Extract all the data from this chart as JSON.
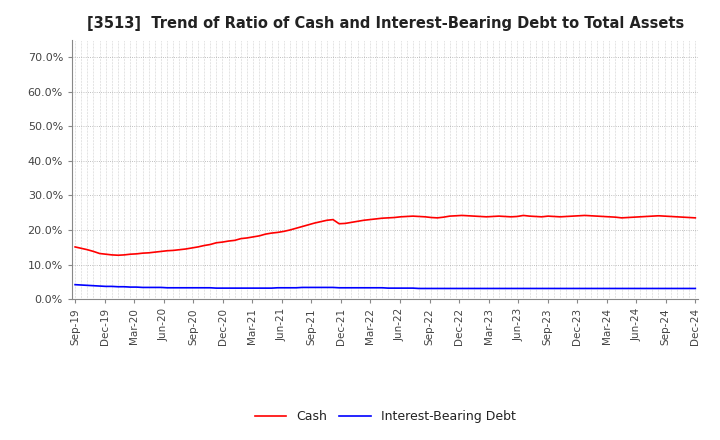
{
  "title": "[3513]  Trend of Ratio of Cash and Interest-Bearing Debt to Total Assets",
  "cash_data": [
    0.151,
    0.147,
    0.143,
    0.138,
    0.132,
    0.13,
    0.128,
    0.127,
    0.128,
    0.13,
    0.131,
    0.133,
    0.134,
    0.136,
    0.138,
    0.14,
    0.141,
    0.143,
    0.145,
    0.148,
    0.151,
    0.155,
    0.158,
    0.163,
    0.165,
    0.168,
    0.17,
    0.175,
    0.177,
    0.18,
    0.183,
    0.188,
    0.191,
    0.193,
    0.196,
    0.2,
    0.205,
    0.21,
    0.215,
    0.22,
    0.224,
    0.228,
    0.23,
    0.218,
    0.219,
    0.222,
    0.225,
    0.228,
    0.23,
    0.232,
    0.234,
    0.235,
    0.236,
    0.238,
    0.239,
    0.24,
    0.239,
    0.238,
    0.236,
    0.235,
    0.237,
    0.24,
    0.241,
    0.242,
    0.241,
    0.24,
    0.239,
    0.238,
    0.239,
    0.24,
    0.239,
    0.238,
    0.239,
    0.242,
    0.24,
    0.239,
    0.238,
    0.24,
    0.239,
    0.238,
    0.239,
    0.24,
    0.241,
    0.242,
    0.241,
    0.24,
    0.239,
    0.238,
    0.237,
    0.235,
    0.236,
    0.237,
    0.238,
    0.239,
    0.24,
    0.241,
    0.24,
    0.239,
    0.238,
    0.237,
    0.236,
    0.235
  ],
  "debt_data": [
    0.042,
    0.041,
    0.04,
    0.039,
    0.038,
    0.037,
    0.037,
    0.036,
    0.036,
    0.035,
    0.035,
    0.034,
    0.034,
    0.034,
    0.034,
    0.033,
    0.033,
    0.033,
    0.033,
    0.033,
    0.033,
    0.033,
    0.033,
    0.032,
    0.032,
    0.032,
    0.032,
    0.032,
    0.032,
    0.032,
    0.032,
    0.032,
    0.032,
    0.033,
    0.033,
    0.033,
    0.033,
    0.034,
    0.034,
    0.034,
    0.034,
    0.034,
    0.034,
    0.033,
    0.033,
    0.033,
    0.033,
    0.033,
    0.033,
    0.033,
    0.033,
    0.032,
    0.032,
    0.032,
    0.032,
    0.032,
    0.031,
    0.031,
    0.031,
    0.031,
    0.031,
    0.031,
    0.031,
    0.031,
    0.031,
    0.031,
    0.031,
    0.031,
    0.031,
    0.031,
    0.031,
    0.031,
    0.031,
    0.031,
    0.031,
    0.031,
    0.031,
    0.031,
    0.031,
    0.031,
    0.031,
    0.031,
    0.031,
    0.031,
    0.031,
    0.031,
    0.031,
    0.031,
    0.031,
    0.031,
    0.031,
    0.031,
    0.031,
    0.031,
    0.031,
    0.031,
    0.031,
    0.031,
    0.031,
    0.031,
    0.031,
    0.031
  ],
  "x_tick_labels": [
    "Sep-19",
    "Dec-19",
    "Mar-20",
    "Jun-20",
    "Sep-20",
    "Dec-20",
    "Mar-21",
    "Jun-21",
    "Sep-21",
    "Dec-21",
    "Mar-22",
    "Jun-22",
    "Sep-22",
    "Dec-22",
    "Mar-23",
    "Jun-23",
    "Sep-23",
    "Dec-23",
    "Mar-24",
    "Jun-24",
    "Sep-24",
    "Dec-24"
  ],
  "cash_color": "#ff0000",
  "debt_color": "#0000ff",
  "background_color": "#ffffff",
  "grid_color": "#aaaaaa",
  "ylim": [
    0.0,
    0.75
  ],
  "yticks": [
    0.0,
    0.1,
    0.2,
    0.3,
    0.4,
    0.5,
    0.6,
    0.7
  ],
  "ytick_labels": [
    "0.0%",
    "10.0%",
    "20.0%",
    "30.0%",
    "40.0%",
    "50.0%",
    "60.0%",
    "70.0%"
  ],
  "legend_cash": "Cash",
  "legend_debt": "Interest-Bearing Debt",
  "line_width": 1.2,
  "n_data_points": 102,
  "n_label_points": 22
}
